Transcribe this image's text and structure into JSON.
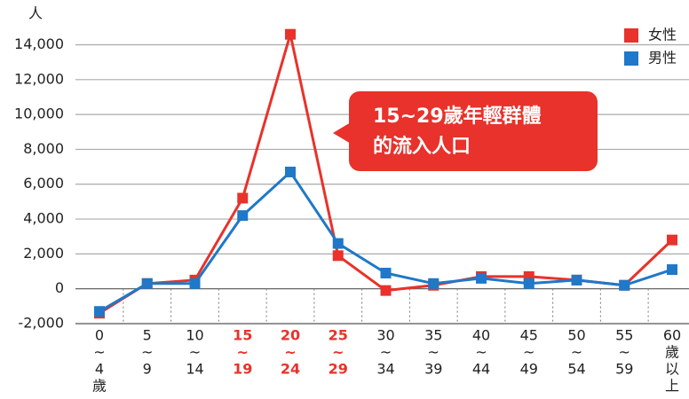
{
  "chart_data": {
    "type": "line",
    "y_unit": "人",
    "categories": [
      [
        "0",
        "~",
        "4",
        "歲"
      ],
      [
        "5",
        "~",
        "9"
      ],
      [
        "10",
        "~",
        "14"
      ],
      [
        "15",
        "~",
        "19"
      ],
      [
        "20",
        "~",
        "24"
      ],
      [
        "25",
        "~",
        "29"
      ],
      [
        "30",
        "~",
        "34"
      ],
      [
        "35",
        "~",
        "39"
      ],
      [
        "40",
        "~",
        "44"
      ],
      [
        "45",
        "~",
        "49"
      ],
      [
        "50",
        "~",
        "54"
      ],
      [
        "55",
        "~",
        "59"
      ],
      [
        "60",
        "歲",
        "以",
        "上"
      ]
    ],
    "category_label_colors": [
      "#222222",
      "#222222",
      "#222222",
      "#e8322b",
      "#e8322b",
      "#e8322b",
      "#222222",
      "#222222",
      "#222222",
      "#222222",
      "#222222",
      "#222222",
      "#222222"
    ],
    "series": [
      {
        "name": "女性",
        "color": "#e8322b",
        "values": [
          -1400,
          300,
          500,
          5200,
          14600,
          1900,
          -100,
          200,
          700,
          700,
          500,
          200,
          2800
        ]
      },
      {
        "name": "男性",
        "color": "#1f78c8",
        "values": [
          -1300,
          300,
          300,
          4200,
          6700,
          2600,
          900,
          300,
          600,
          300,
          500,
          200,
          1100
        ]
      }
    ],
    "ylim": [
      -2000,
      15500
    ],
    "yticks": [
      {
        "value": -2000,
        "label": "-2,000"
      },
      0,
      {
        "value": 2000,
        "label": "2,000"
      },
      {
        "value": 4000,
        "label": "4,000"
      },
      {
        "value": 6000,
        "label": "6,000"
      },
      {
        "value": 8000,
        "label": "8,000"
      },
      {
        "value": 10000,
        "label": "10,000"
      },
      {
        "value": 12000,
        "label": "12,000"
      },
      {
        "value": 14000,
        "label": "14,000"
      }
    ],
    "grid": true,
    "legend": "upper right",
    "annotation": [
      "15~29歲年輕群體",
      "的流入人口"
    ]
  }
}
